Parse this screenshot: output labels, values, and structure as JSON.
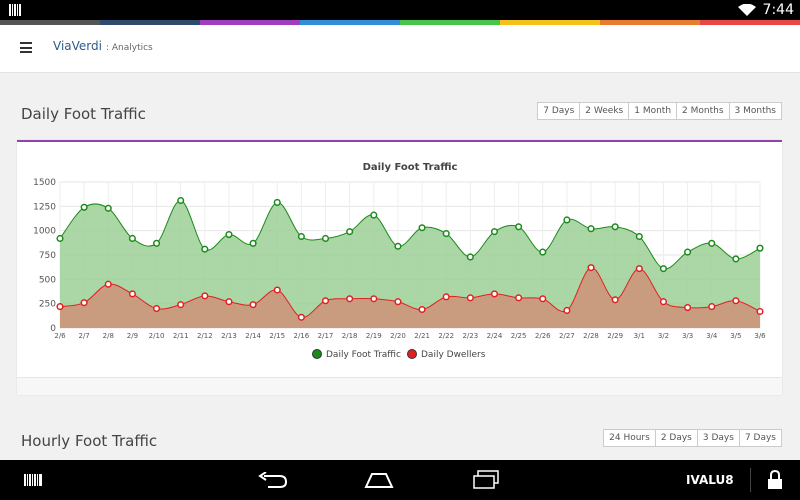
{
  "status_bar": {
    "time": "7:44"
  },
  "rainbow_colors": [
    "#555555",
    "#2e4b6e",
    "#a13dbf",
    "#2f8fd8",
    "#48c34b",
    "#f3c11a",
    "#e87c2f",
    "#e64848"
  ],
  "header": {
    "brand": "ViaVerdi",
    "subtitle": ": Analytics"
  },
  "daily_section": {
    "title": "Daily Foot Traffic",
    "ranges": [
      "7 Days",
      "2 Weeks",
      "1 Month",
      "2 Months",
      "3 Months"
    ]
  },
  "hourly_section": {
    "title": "Hourly Foot Traffic",
    "ranges": [
      "24 Hours",
      "2 Days",
      "3 Days",
      "7 Days"
    ]
  },
  "chart_data": {
    "type": "area",
    "title": "Daily Foot Traffic",
    "x": [
      "2/6",
      "2/7",
      "2/8",
      "2/9",
      "2/10",
      "2/11",
      "2/12",
      "2/13",
      "2/14",
      "2/15",
      "2/16",
      "2/17",
      "2/18",
      "2/19",
      "2/20",
      "2/21",
      "2/22",
      "2/23",
      "2/24",
      "2/25",
      "2/26",
      "2/27",
      "2/28",
      "2/29",
      "3/1",
      "3/2",
      "3/3",
      "3/4",
      "3/5",
      "3/6"
    ],
    "yticks": [
      "0",
      "250",
      "500",
      "750",
      "1000",
      "1250",
      "1500"
    ],
    "ylim": [
      0,
      1500
    ],
    "grid": true,
    "legend": "bottom",
    "series": [
      {
        "name": "Daily Foot Traffic",
        "color": "#1a8a1a",
        "fill": "#9ccf95",
        "values": [
          920,
          1240,
          1230,
          920,
          870,
          1310,
          810,
          960,
          870,
          1290,
          940,
          920,
          990,
          1160,
          840,
          1030,
          970,
          730,
          990,
          1040,
          780,
          1110,
          1020,
          1040,
          940,
          610,
          780,
          870,
          710,
          820
        ]
      },
      {
        "name": "Daily Dwellers",
        "color": "#e02020",
        "fill": "#cf9278",
        "values": [
          220,
          260,
          450,
          350,
          200,
          240,
          330,
          270,
          240,
          390,
          110,
          280,
          300,
          300,
          270,
          190,
          320,
          310,
          350,
          310,
          300,
          180,
          620,
          290,
          610,
          270,
          210,
          220,
          280,
          170
        ]
      }
    ]
  },
  "navbar": {
    "brand": "IVALU8"
  }
}
